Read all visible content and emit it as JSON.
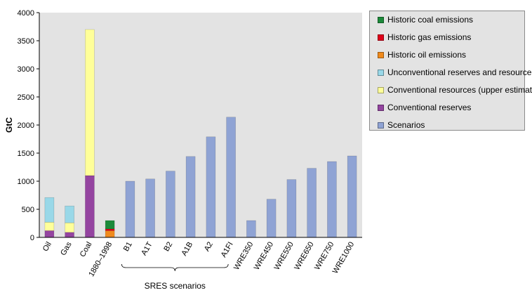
{
  "chart_data": {
    "type": "bar",
    "ylabel": "GtC",
    "ylim": [
      0,
      4000
    ],
    "yticks": [
      0,
      500,
      1000,
      1500,
      2000,
      2500,
      3000,
      3500,
      4000
    ],
    "categories": [
      "Oil",
      "Gas",
      "Coal",
      "1880–1998",
      "B1",
      "A1T",
      "B2",
      "A1B",
      "A2",
      "A1FI",
      "WRE350",
      "WRE450",
      "WRE550",
      "WRE650",
      "WRE750",
      "WRE1000"
    ],
    "series": [
      {
        "name": "Historic coal emissions",
        "color": "#1c8a3a",
        "values": [
          0,
          0,
          0,
          150,
          0,
          0,
          0,
          0,
          0,
          0,
          0,
          0,
          0,
          0,
          0,
          0
        ]
      },
      {
        "name": "Historic gas emissions",
        "color": "#e0001a",
        "values": [
          0,
          0,
          0,
          30,
          0,
          0,
          0,
          0,
          0,
          0,
          0,
          0,
          0,
          0,
          0,
          0
        ]
      },
      {
        "name": "Historic oil emissions",
        "color": "#f08a1c",
        "values": [
          0,
          0,
          0,
          120,
          0,
          0,
          0,
          0,
          0,
          0,
          0,
          0,
          0,
          0,
          0,
          0
        ]
      },
      {
        "name": "Unconventional reserves and resources",
        "color": "#99d8e8",
        "values": [
          440,
          300,
          0,
          0,
          0,
          0,
          0,
          0,
          0,
          0,
          0,
          0,
          0,
          0,
          0,
          0
        ]
      },
      {
        "name": "Conventional resources (upper estimate)",
        "color": "#ffff99",
        "values": [
          150,
          170,
          2600,
          0,
          0,
          0,
          0,
          0,
          0,
          0,
          0,
          0,
          0,
          0,
          0,
          0
        ]
      },
      {
        "name": "Conventional reserves",
        "color": "#9444a0",
        "values": [
          120,
          90,
          1100,
          0,
          0,
          0,
          0,
          0,
          0,
          0,
          0,
          0,
          0,
          0,
          0,
          0
        ]
      },
      {
        "name": "Scenarios",
        "color": "#8fa3d4",
        "values": [
          0,
          0,
          0,
          0,
          1000,
          1040,
          1180,
          1440,
          1790,
          2140,
          300,
          680,
          1030,
          1230,
          1350,
          1450
        ]
      }
    ],
    "stack_order": [
      "Conventional reserves",
      "Conventional resources (upper estimate)",
      "Unconventional reserves and resources",
      "Historic oil emissions",
      "Historic gas emissions",
      "Historic coal emissions",
      "Scenarios"
    ],
    "annotations": [
      {
        "text": "SRES scenarios",
        "spans": [
          "B1",
          "A1FI"
        ]
      }
    ],
    "grid": false,
    "legend_position": "right"
  }
}
